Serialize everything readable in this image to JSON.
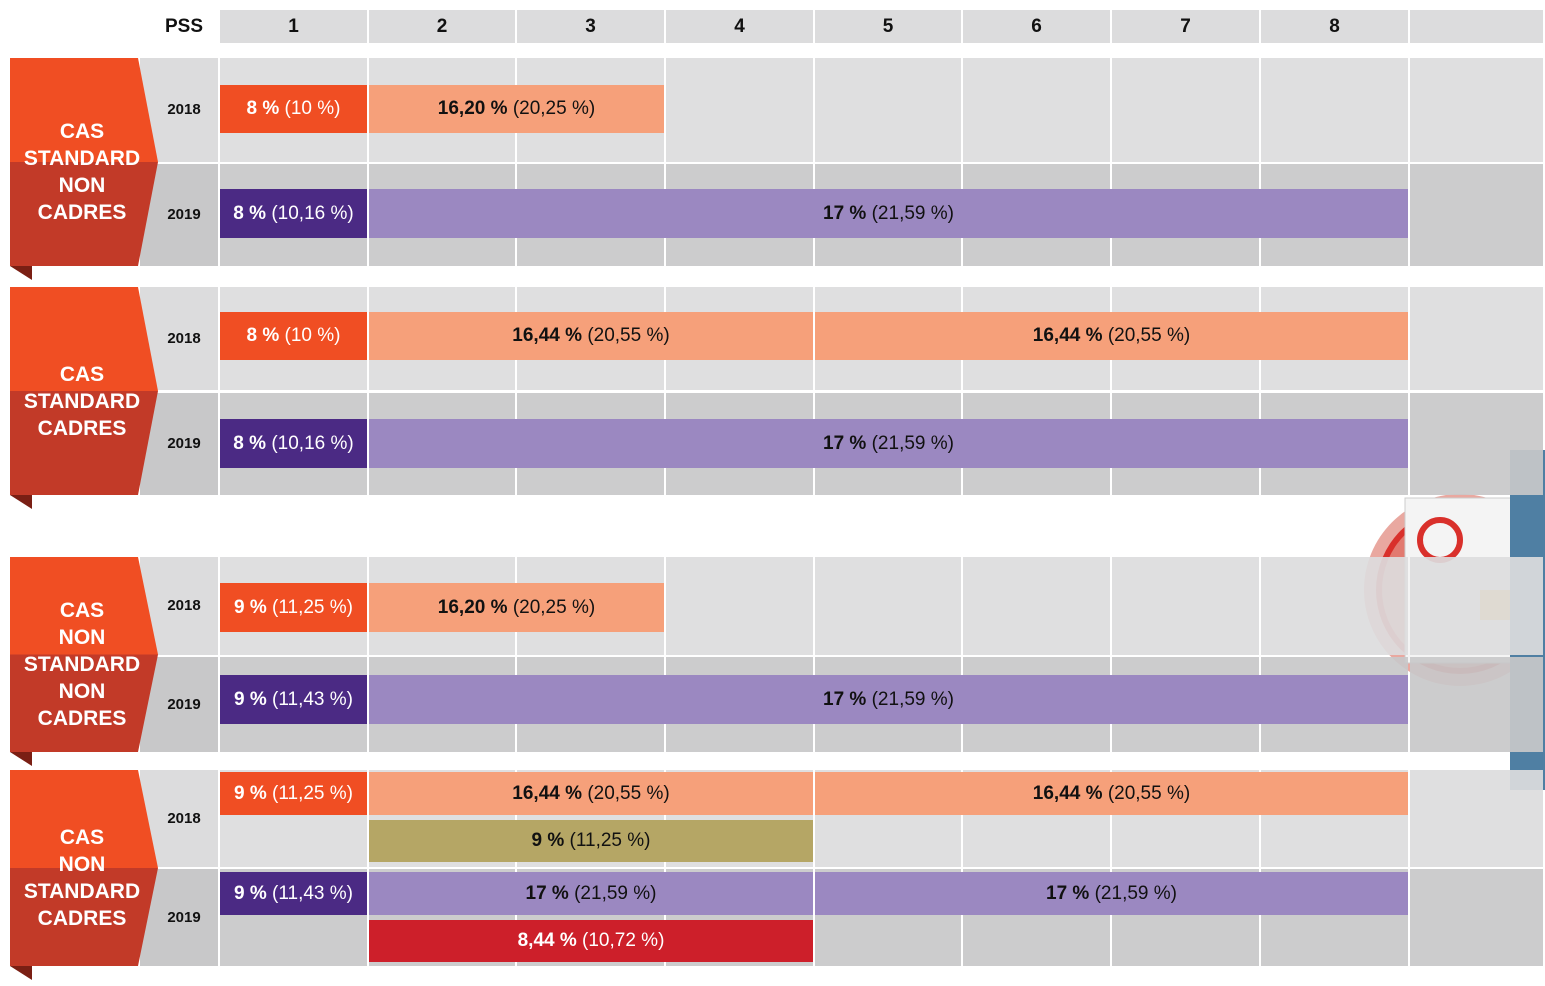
{
  "header": {
    "label": "PSS",
    "columns": [
      "1",
      "2",
      "3",
      "4",
      "5",
      "6",
      "7",
      "8"
    ]
  },
  "groups": [
    {
      "label": [
        "CAS",
        "STANDARD",
        "NON",
        "CADRES"
      ],
      "rows": [
        {
          "year": "2018",
          "bars": [
            {
              "bold": "8 %",
              "note": "(10 %)"
            },
            {
              "bold": "16,20 %",
              "note": "(20,25 %)"
            }
          ]
        },
        {
          "year": "2019",
          "bars": [
            {
              "bold": "8 %",
              "note": "(10,16 %)"
            },
            {
              "bold": "17 %",
              "note": "(21,59 %)"
            }
          ]
        }
      ]
    },
    {
      "label": [
        "CAS",
        "STANDARD",
        "CADRES"
      ],
      "rows": [
        {
          "year": "2018",
          "bars": [
            {
              "bold": "8 %",
              "note": "(10 %)"
            },
            {
              "bold": "16,44 %",
              "note": "(20,55 %)"
            },
            {
              "bold": "16,44 %",
              "note": "(20,55 %)"
            }
          ]
        },
        {
          "year": "2019",
          "bars": [
            {
              "bold": "8 %",
              "note": "(10,16 %)"
            },
            {
              "bold": "17 %",
              "note": "(21,59 %)"
            }
          ]
        }
      ]
    },
    {
      "label": [
        "CAS",
        "NON",
        "STANDARD",
        "NON",
        "CADRES"
      ],
      "rows": [
        {
          "year": "2018",
          "bars": [
            {
              "bold": "9 %",
              "note": "(11,25 %)"
            },
            {
              "bold": "16,20 %",
              "note": "(20,25 %)"
            }
          ]
        },
        {
          "year": "2019",
          "bars": [
            {
              "bold": "9 %",
              "note": "(11,43 %)"
            },
            {
              "bold": "17 %",
              "note": "(21,59 %)"
            }
          ]
        }
      ]
    },
    {
      "label": [
        "CAS",
        "NON",
        "STANDARD",
        "CADRES"
      ],
      "rows": [
        {
          "year": "2018",
          "bars": [
            {
              "bold": "9 %",
              "note": "(11,25 %)"
            },
            {
              "bold": "16,44 %",
              "note": "(20,55 %)"
            },
            {
              "bold": "16,44 %",
              "note": "(20,55 %)"
            },
            {
              "bold": "9 %",
              "note": "(11,25 %)"
            }
          ]
        },
        {
          "year": "2019",
          "bars": [
            {
              "bold": "9 %",
              "note": "(11,43 %)"
            },
            {
              "bold": "17 %",
              "note": "(21,59 %)"
            },
            {
              "bold": "17 %",
              "note": "(21,59 %)"
            },
            {
              "bold": "8,44 %",
              "note": "(10,72 %)"
            }
          ]
        }
      ]
    }
  ]
}
